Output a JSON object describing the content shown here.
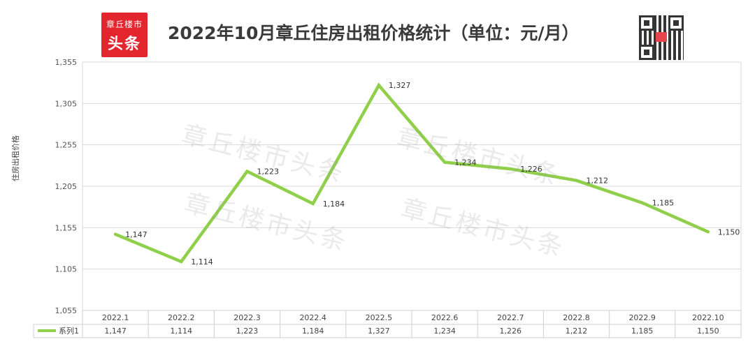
{
  "header": {
    "title": "2022年10月章丘住房出租价格统计（单位：元/月）",
    "logo_line1": "章丘楼市",
    "logo_line2": "头条",
    "watermark": "章丘楼市头条"
  },
  "chart_data": {
    "type": "line",
    "title": "2022年10月章丘住房出租价格统计（单位：元/月）",
    "ylabel": "住房出租价格",
    "xlabel": "",
    "categories": [
      "2022.1",
      "2022.2",
      "2022.3",
      "2022.4",
      "2022.5",
      "2022.6",
      "2022.7",
      "2022.8",
      "2022.9",
      "2022.10"
    ],
    "series": [
      {
        "name": "系列1",
        "values": [
          1147,
          1114,
          1223,
          1184,
          1327,
          1234,
          1226,
          1212,
          1185,
          1150
        ],
        "labels": [
          "1,147",
          "1,114",
          "1,223",
          "1,184",
          "1,327",
          "1,234",
          "1,226",
          "1,212",
          "1,185",
          "1,150"
        ]
      }
    ],
    "ylim": [
      1055,
      1355
    ],
    "yticks": [
      1355,
      1305,
      1255,
      1205,
      1155,
      1105,
      1055
    ],
    "ytick_labels": [
      "1,355",
      "1,305",
      "1,255",
      "1,205",
      "1,155",
      "1,105",
      "1,055"
    ],
    "grid": true,
    "legend": "data-table",
    "line_color": "#8fcf4a"
  }
}
